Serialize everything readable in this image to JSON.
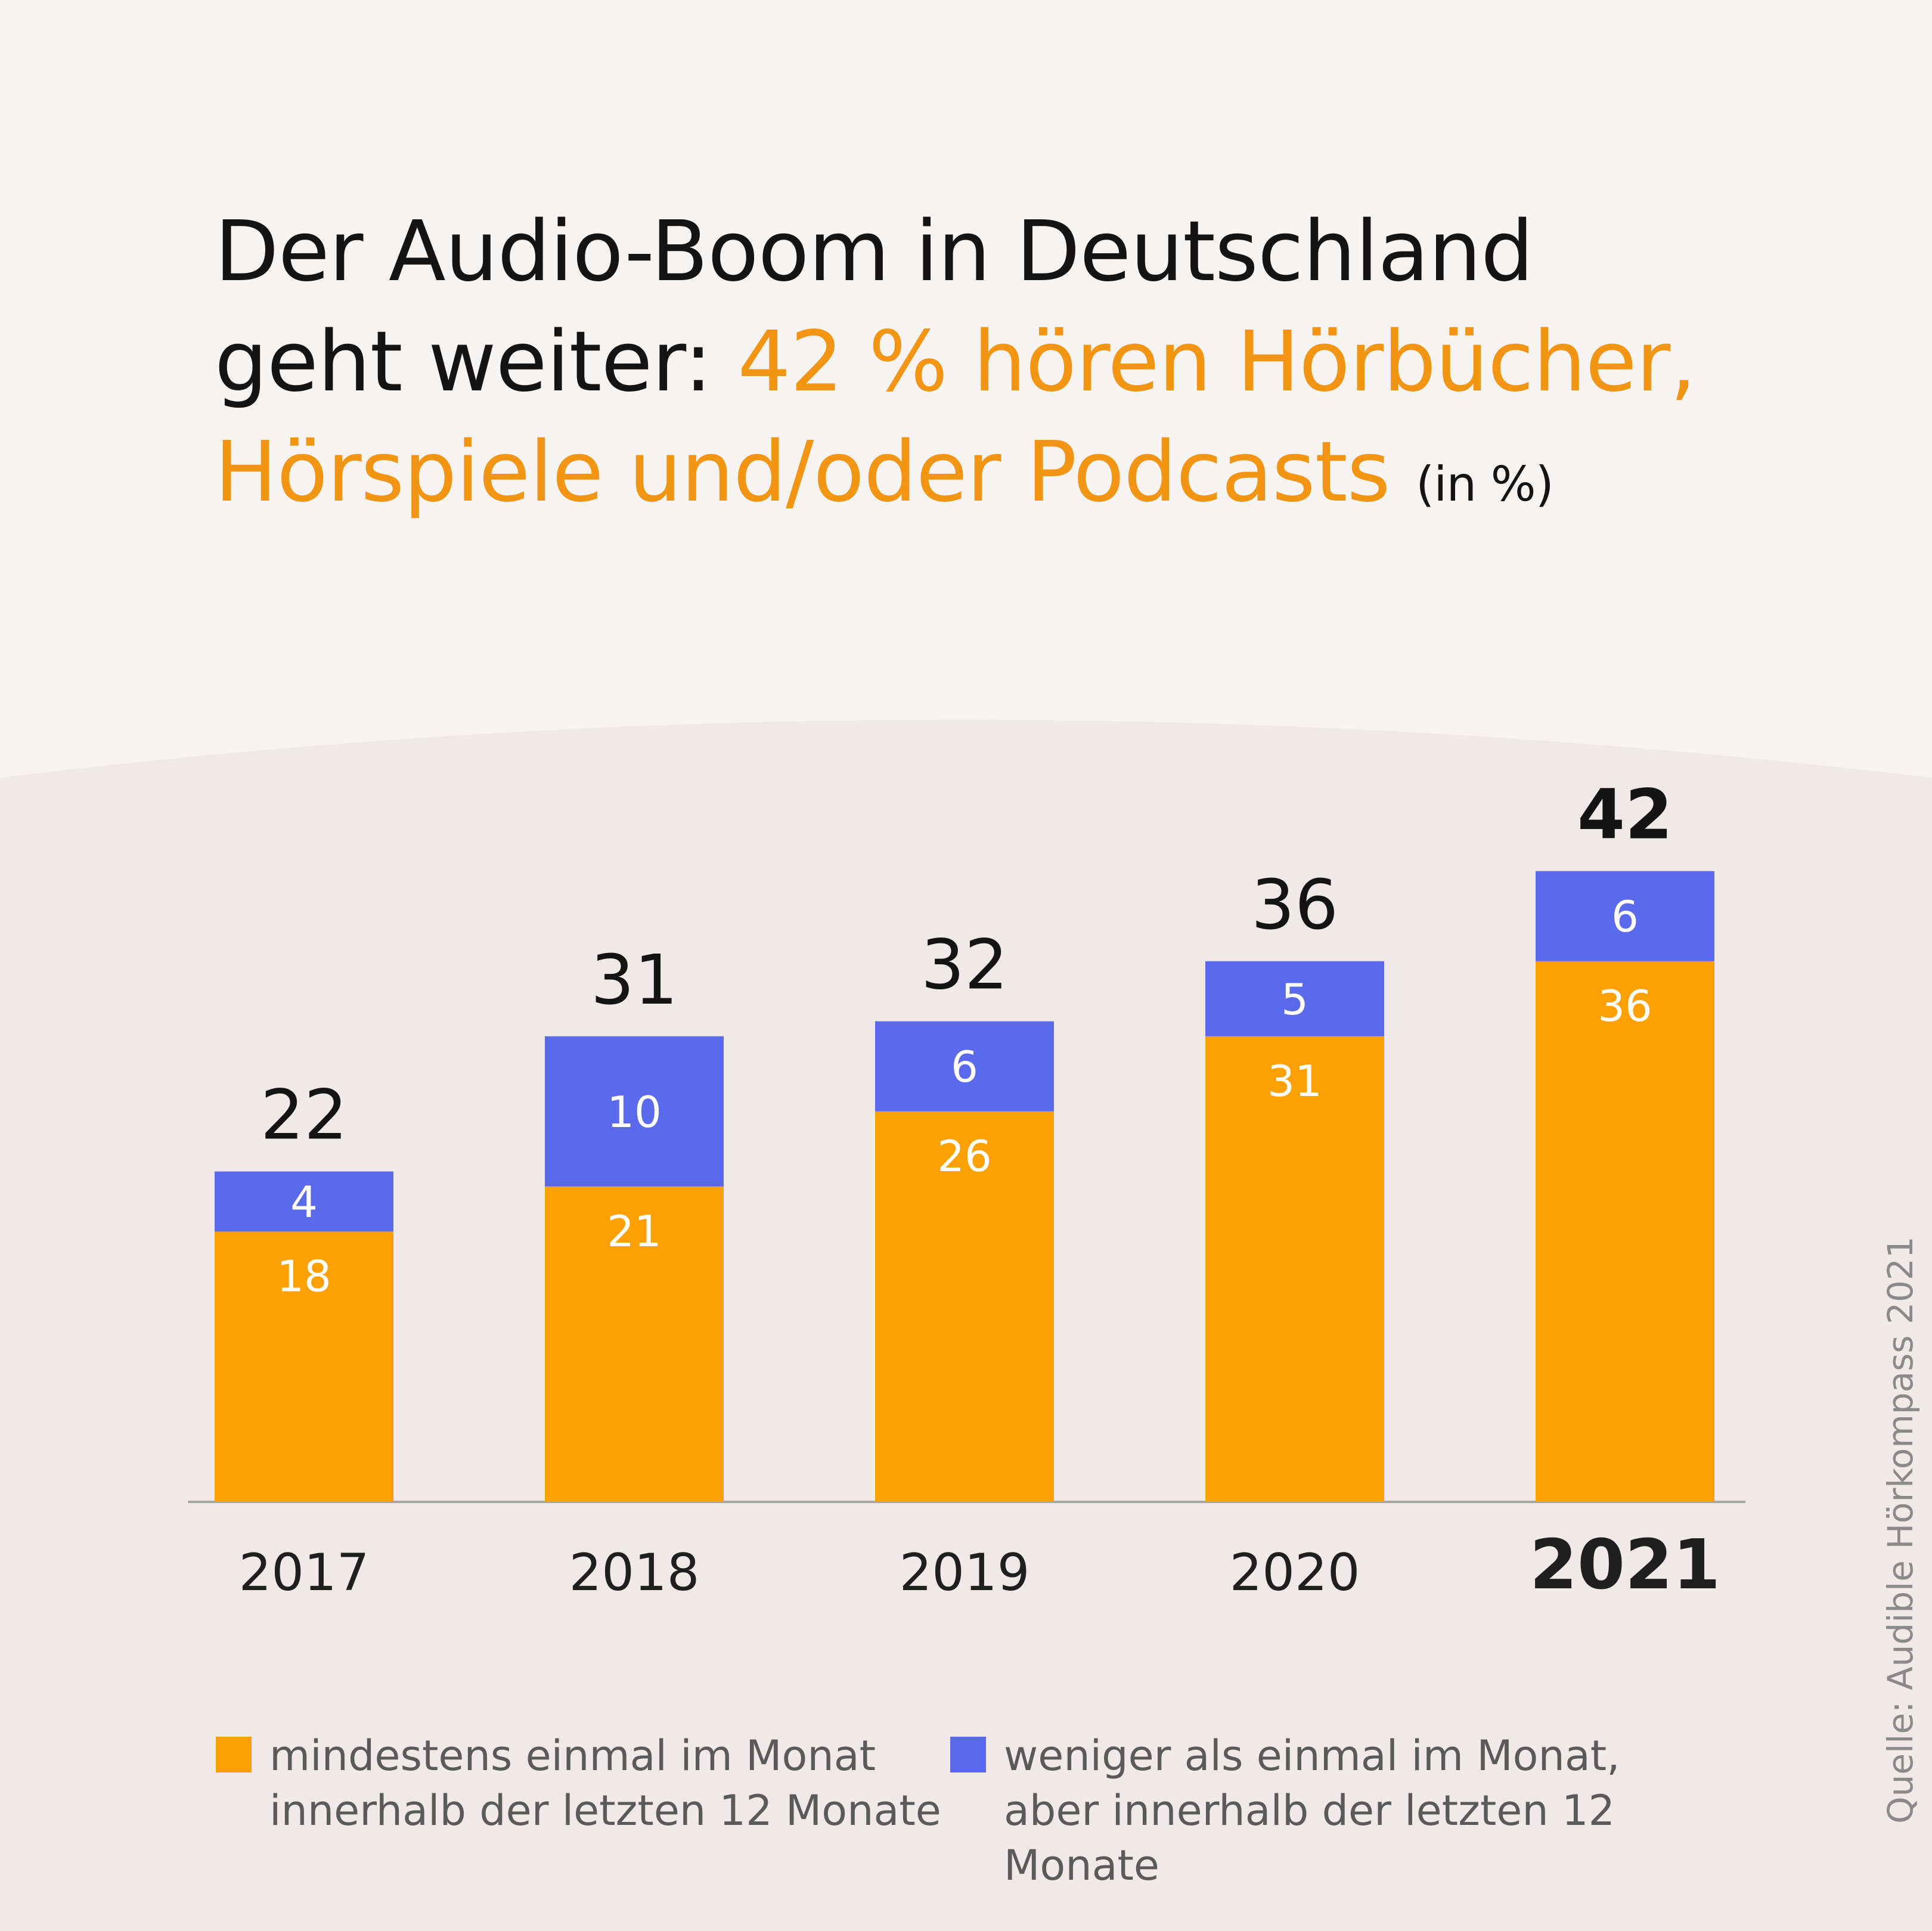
{
  "colors": {
    "background_top": "#f7f3f0",
    "background_bottom": "#f1e9e7",
    "orange": "#fca003",
    "blue": "#5b6aea",
    "title_dark": "#141414",
    "title_accent": "#f39514",
    "axis": "#a8a8a8",
    "legend_text": "#5a5a5a",
    "source_text": "#8a8a8a"
  },
  "title": {
    "line1": "Der Audio-Boom in Deutschland",
    "line2_plain": "geht weiter: ",
    "line2_highlight": "42 % hören Hörbücher,",
    "line3_highlight": "Hörspiele und/oder Podcasts",
    "unit": "(in %)"
  },
  "chart_data": {
    "type": "bar",
    "stacked": true,
    "categories": [
      "2017",
      "2018",
      "2019",
      "2020",
      "2021"
    ],
    "highlight_category": "2021",
    "series": [
      {
        "name": "mindestens einmal im Monat innerhalb der letzten 12 Monate",
        "color": "#fca003",
        "values": [
          18,
          21,
          26,
          31,
          36
        ],
        "labels": [
          "18",
          "21",
          "26",
          "31",
          "36"
        ]
      },
      {
        "name": "weniger als einmal im Monat, aber innerhalb der letzten 12 Monate",
        "color": "#5b6aea",
        "values": [
          4,
          10,
          6,
          5,
          6
        ],
        "labels": [
          "4",
          "10",
          "6",
          "5",
          "6"
        ]
      }
    ],
    "totals": [
      22,
      31,
      32,
      36,
      42
    ],
    "total_labels": [
      "22",
      "31",
      "32",
      "36",
      "42"
    ],
    "ylim": [
      0,
      42
    ],
    "grid": false,
    "title": "Der Audio-Boom in Deutschland geht weiter: 42 % hören Hörbücher, Hörspiele und/oder Podcasts",
    "ylabel": "in %",
    "xlabel": "",
    "legend_position": "bottom"
  },
  "legend": {
    "item1_line1": "mindestens einmal im Monat",
    "item1_line2": "innerhalb der letzten 12 Monate",
    "item2_line1": "weniger als einmal im Monat,",
    "item2_line2": "aber innerhalb der letzten 12 Monate"
  },
  "source": "Quelle: Audible Hörkompass 2021"
}
